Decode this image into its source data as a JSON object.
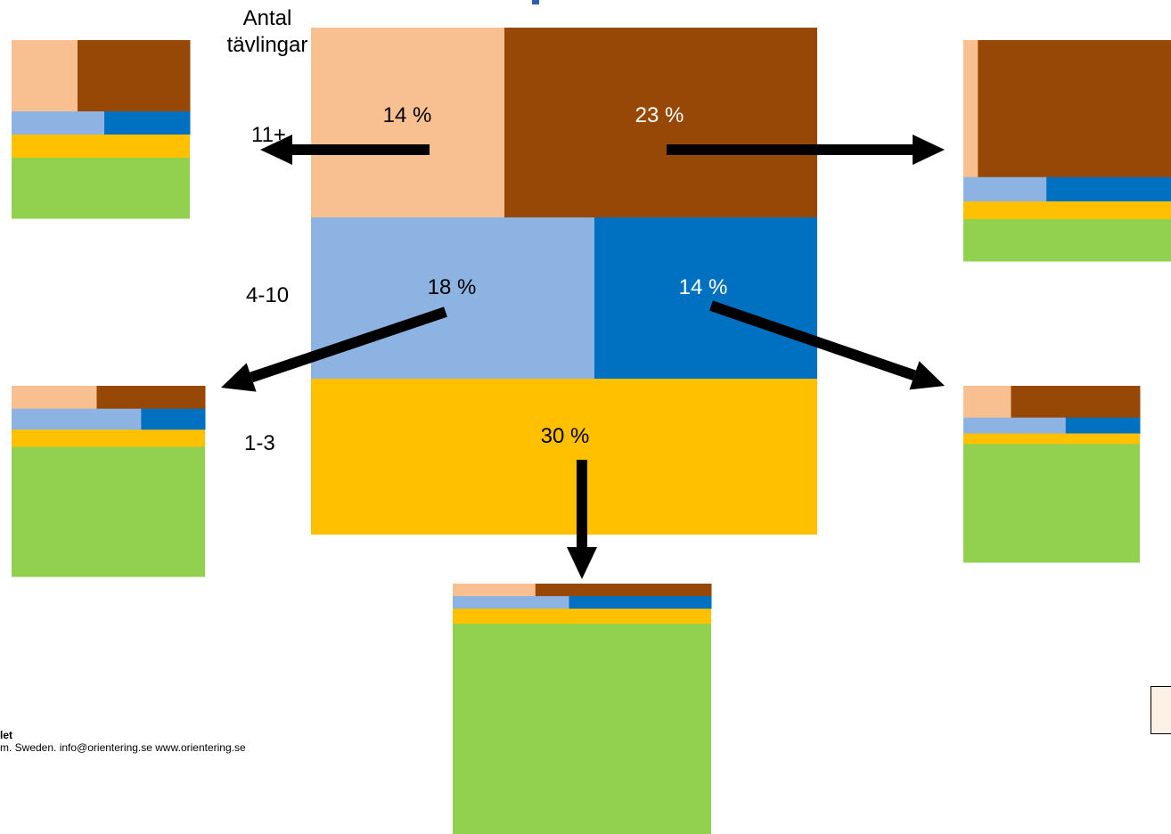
{
  "axis_title": [
    "Antal",
    "tävlingar"
  ],
  "row_labels": {
    "r11": "11+",
    "r4_10": "4-10",
    "r1_3": "1-3"
  },
  "footer": {
    "org": "let",
    "address": "m. Sweden. info@orientering.se www.orientering.se"
  },
  "colors": {
    "peach": "#f8c090",
    "brown": "#974806",
    "lightblue": "#8db3e2",
    "blue": "#0070c0",
    "yellow": "#ffc000",
    "green": "#92d050",
    "arrow": "#000000"
  },
  "chart_data": {
    "type": "mosaic",
    "main": {
      "cells": [
        {
          "id": "c11a",
          "label": "14 %",
          "value": 14,
          "color": "peach",
          "text_color": "#000000"
        },
        {
          "id": "c11b",
          "label": "23 %",
          "value": 23,
          "color": "brown",
          "text_color": "#ffffff"
        },
        {
          "id": "c4a",
          "label": "18 %",
          "value": 18,
          "color": "lightblue",
          "text_color": "#000000"
        },
        {
          "id": "c4b",
          "label": "14 %",
          "value": 14,
          "color": "blue",
          "text_color": "#ffffff"
        },
        {
          "id": "c13",
          "label": "30 %",
          "value": 30,
          "color": "yellow",
          "text_color": "#000000"
        }
      ]
    },
    "small_multiples": [
      {
        "id": "from-c11a",
        "rows": [
          {
            "h": 0.4,
            "split": [
              0.37,
              0.63
            ]
          },
          {
            "h": 0.13,
            "split": [
              0.52,
              0.48
            ]
          },
          {
            "h": 0.13
          },
          {
            "h": 0.34
          }
        ]
      },
      {
        "id": "from-c11b",
        "rows": [
          {
            "h": 0.62,
            "split": [
              0.07,
              0.93
            ]
          },
          {
            "h": 0.11,
            "split": [
              0.4,
              0.6
            ]
          },
          {
            "h": 0.08
          },
          {
            "h": 0.19
          }
        ]
      },
      {
        "id": "from-c4a",
        "rows": [
          {
            "h": 0.12,
            "split": [
              0.44,
              0.56
            ]
          },
          {
            "h": 0.11,
            "split": [
              0.67,
              0.33
            ]
          },
          {
            "h": 0.09
          },
          {
            "h": 0.68
          }
        ]
      },
      {
        "id": "from-c4b",
        "rows": [
          {
            "h": 0.18,
            "split": [
              0.27,
              0.73
            ]
          },
          {
            "h": 0.09,
            "split": [
              0.58,
              0.42
            ]
          },
          {
            "h": 0.06
          },
          {
            "h": 0.67
          }
        ]
      },
      {
        "id": "from-c13",
        "rows": [
          {
            "h": 0.05,
            "split": [
              0.32,
              0.68
            ]
          },
          {
            "h": 0.05,
            "split": [
              0.45,
              0.55
            ]
          },
          {
            "h": 0.06
          },
          {
            "h": 0.84
          }
        ]
      }
    ]
  }
}
